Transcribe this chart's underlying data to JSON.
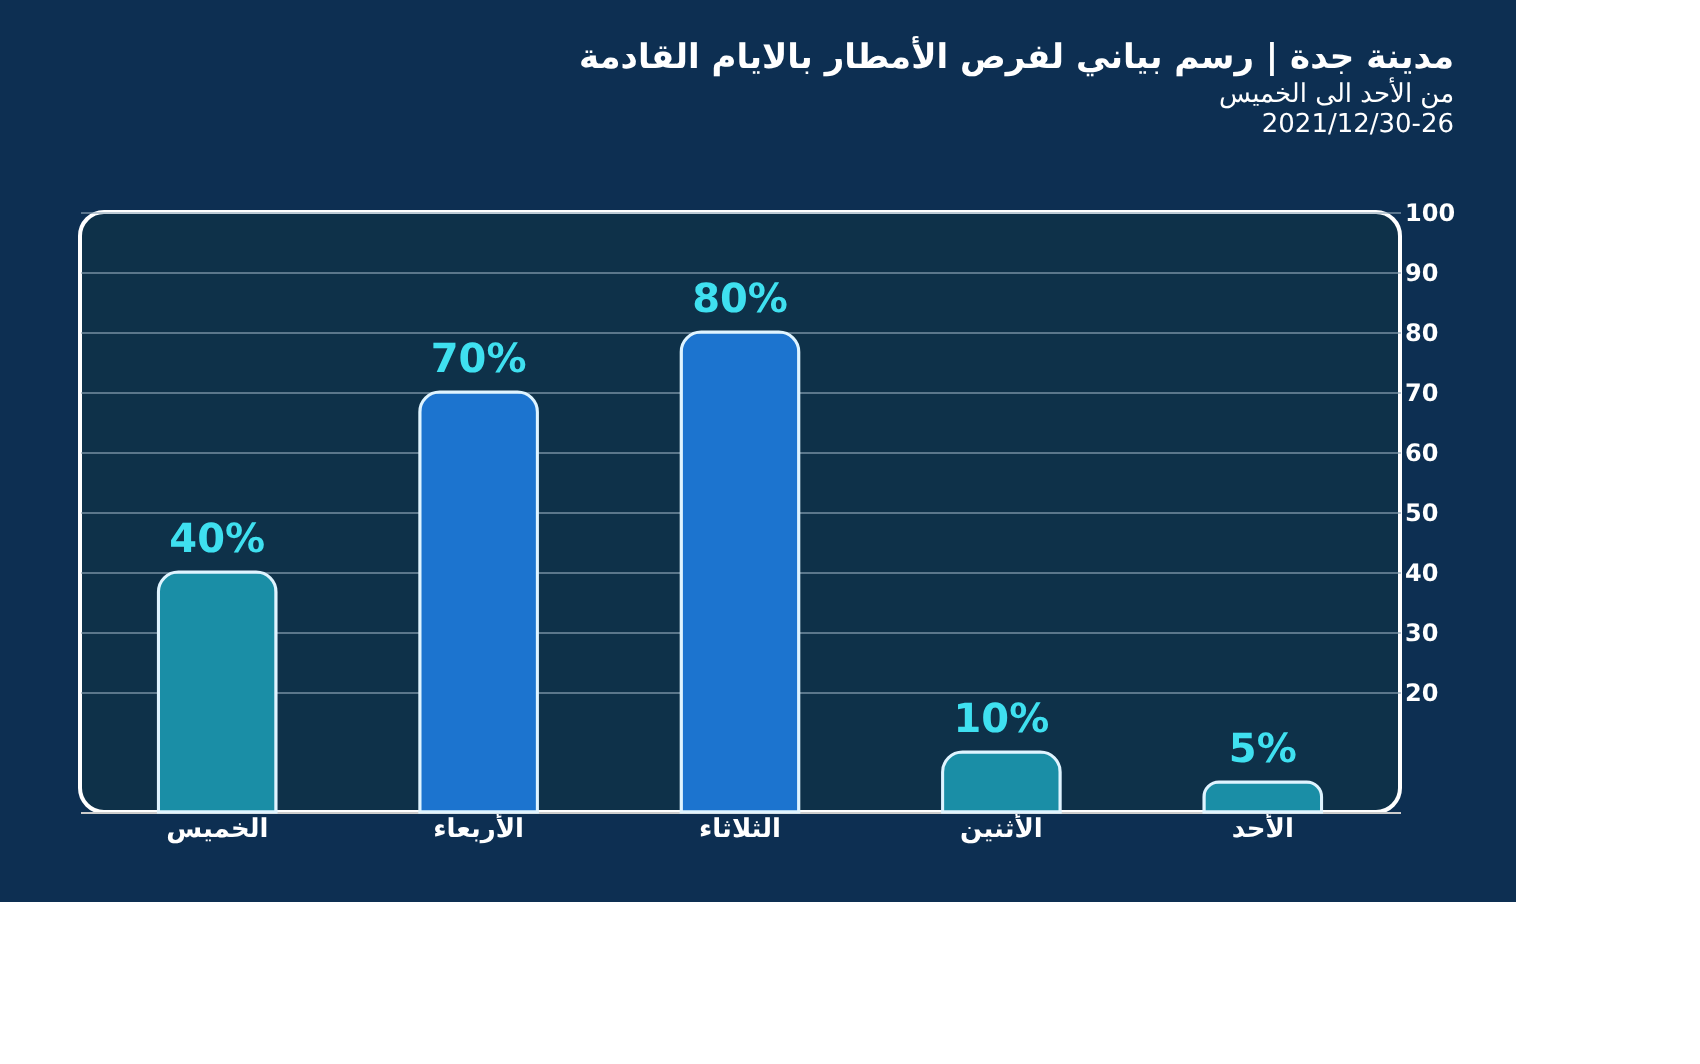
{
  "chart_data": {
    "type": "bar",
    "title": "مدينة جدة | رسم بياني لفرص الأمطار بالايام القادمة",
    "subtitle": [
      "من الأحد  الى الخميس",
      "2021/12/30-26"
    ],
    "categories": [
      "الخميس",
      "الأربعاء",
      "الثلاثاء",
      "الأثنين",
      "الأحد"
    ],
    "values": [
      40,
      70,
      80,
      10,
      5
    ],
    "value_labels": [
      "40%",
      "70%",
      "80%",
      "10%",
      "5%"
    ],
    "colors": [
      "#1a8ea6",
      "#1c74cf",
      "#1c74cf",
      "#1a8ea6",
      "#1a8ea6"
    ],
    "ylim": [
      0,
      100
    ],
    "yticks": [
      20,
      30,
      40,
      50,
      60,
      70,
      80,
      90,
      100
    ],
    "grid": "y"
  }
}
